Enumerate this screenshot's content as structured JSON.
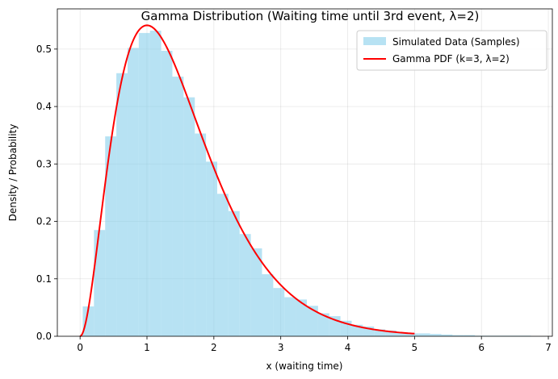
{
  "chart_data": {
    "type": "bar",
    "title": "Gamma Distribution (Waiting time until 3rd event, λ=2)",
    "xlabel": "x (waiting time)",
    "ylabel": "Density / Probability",
    "xlim": [
      -0.34,
      7.06
    ],
    "ylim": [
      0,
      0.57
    ],
    "xticks": [
      0,
      1,
      2,
      3,
      4,
      5,
      6,
      7
    ],
    "yticks": [
      0.0,
      0.1,
      0.2,
      0.3,
      0.4,
      0.5
    ],
    "ytick_labels": [
      "0.0",
      "0.1",
      "0.2",
      "0.3",
      "0.4",
      "0.5"
    ],
    "grid": true,
    "legend_position": "top-right",
    "histogram": {
      "name": "Simulated Data (Samples)",
      "color": "#87ceeb",
      "bin_start": 0.04,
      "bin_width": 0.1675,
      "values": [
        0.052,
        0.185,
        0.348,
        0.458,
        0.502,
        0.528,
        0.532,
        0.497,
        0.452,
        0.416,
        0.353,
        0.304,
        0.248,
        0.218,
        0.178,
        0.153,
        0.108,
        0.084,
        0.068,
        0.064,
        0.053,
        0.04,
        0.035,
        0.027,
        0.02,
        0.017,
        0.012,
        0.01,
        0.007,
        0.005,
        0.005,
        0.004,
        0.003,
        0.002,
        0.002,
        0.001,
        0.001,
        0.001,
        0.001,
        0.001
      ]
    },
    "curve": {
      "name": "Gamma PDF (k=3, λ=2)",
      "color": "#ff0000",
      "k": 3,
      "lambda": 2,
      "x_range": [
        0,
        5
      ]
    }
  }
}
